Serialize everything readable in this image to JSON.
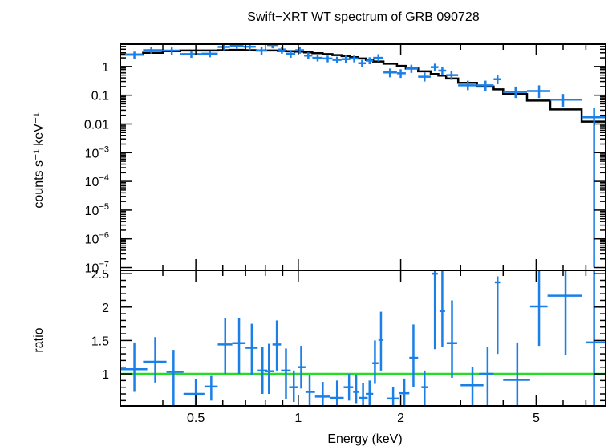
{
  "chart_data": [
    {
      "type": "scatter",
      "panel": "spectrum",
      "title": "Swift−XRT WT spectrum of GRB 090728",
      "ylabel": "counts s⁻¹ keV⁻¹",
      "yscale": "log",
      "xscale": "log",
      "xlim": [
        0.3,
        8.0
      ],
      "ylim": [
        8e-08,
        6
      ],
      "yticks": [
        {
          "value": 1,
          "label": "1"
        },
        {
          "value": 0.1,
          "label": "0.1"
        },
        {
          "value": 0.01,
          "label": "0.01"
        },
        {
          "value": 0.001,
          "label": "10",
          "exp": "−3"
        },
        {
          "value": 0.0001,
          "label": "10",
          "exp": "−4"
        },
        {
          "value": 1e-05,
          "label": "10",
          "exp": "−5"
        },
        {
          "value": 1e-06,
          "label": "10",
          "exp": "−6"
        },
        {
          "value": 1e-07,
          "label": "10",
          "exp": "−7"
        }
      ],
      "colors": {
        "data": "#1a7fe6",
        "model": "#000000"
      },
      "data": [
        {
          "x": 0.33,
          "xlo": 0.31,
          "xhi": 0.35,
          "y": 2.6,
          "ylo": 1.8,
          "yhi": 3.3
        },
        {
          "x": 0.37,
          "xlo": 0.35,
          "xhi": 0.4,
          "y": 3.7,
          "ylo": 2.8,
          "yhi": 4.7
        },
        {
          "x": 0.425,
          "xlo": 0.4,
          "xhi": 0.45,
          "y": 3.6,
          "ylo": 2.5,
          "yhi": 4.6
        },
        {
          "x": 0.485,
          "xlo": 0.45,
          "xhi": 0.52,
          "y": 2.7,
          "ylo": 2.0,
          "yhi": 3.6
        },
        {
          "x": 0.55,
          "xlo": 0.52,
          "xhi": 0.58,
          "y": 2.8,
          "ylo": 2.1,
          "yhi": 3.6
        },
        {
          "x": 0.605,
          "xlo": 0.58,
          "xhi": 0.63,
          "y": 4.8,
          "ylo": 3.7,
          "yhi": 5.9
        },
        {
          "x": 0.66,
          "xlo": 0.63,
          "xhi": 0.69,
          "y": 5.3,
          "ylo": 4.2,
          "yhi": 6.2
        },
        {
          "x": 0.72,
          "xlo": 0.69,
          "xhi": 0.75,
          "y": 4.9,
          "ylo": 3.7,
          "yhi": 6.0
        },
        {
          "x": 0.78,
          "xlo": 0.75,
          "xhi": 0.81,
          "y": 3.6,
          "ylo": 2.6,
          "yhi": 4.7
        },
        {
          "x": 0.84,
          "xlo": 0.81,
          "xhi": 0.87,
          "y": 5.6,
          "ylo": 4.3,
          "yhi": 6.3
        },
        {
          "x": 0.895,
          "xlo": 0.87,
          "xhi": 0.92,
          "y": 3.9,
          "ylo": 2.8,
          "yhi": 5.0
        },
        {
          "x": 0.95,
          "xlo": 0.92,
          "xhi": 0.98,
          "y": 2.8,
          "ylo": 2.0,
          "yhi": 3.8
        },
        {
          "x": 1.01,
          "xlo": 0.98,
          "xhi": 1.04,
          "y": 3.7,
          "ylo": 2.8,
          "yhi": 4.7
        },
        {
          "x": 1.07,
          "xlo": 1.04,
          "xhi": 1.1,
          "y": 2.4,
          "ylo": 1.8,
          "yhi": 3.1
        },
        {
          "x": 1.14,
          "xlo": 1.1,
          "xhi": 1.18,
          "y": 2.0,
          "ylo": 1.5,
          "yhi": 2.6
        },
        {
          "x": 1.22,
          "xlo": 1.18,
          "xhi": 1.26,
          "y": 1.9,
          "ylo": 1.4,
          "yhi": 2.4
        },
        {
          "x": 1.3,
          "xlo": 1.26,
          "xhi": 1.34,
          "y": 1.7,
          "ylo": 1.3,
          "yhi": 2.2
        },
        {
          "x": 1.38,
          "xlo": 1.34,
          "xhi": 1.42,
          "y": 1.8,
          "ylo": 1.3,
          "yhi": 2.4
        },
        {
          "x": 1.46,
          "xlo": 1.42,
          "xhi": 1.5,
          "y": 1.9,
          "ylo": 1.4,
          "yhi": 2.4
        },
        {
          "x": 1.54,
          "xlo": 1.5,
          "xhi": 1.58,
          "y": 1.3,
          "ylo": 0.95,
          "yhi": 1.7
        },
        {
          "x": 1.62,
          "xlo": 1.58,
          "xhi": 1.66,
          "y": 1.6,
          "ylo": 1.2,
          "yhi": 2.1
        },
        {
          "x": 1.72,
          "xlo": 1.66,
          "xhi": 1.78,
          "y": 2.0,
          "ylo": 1.5,
          "yhi": 2.7
        },
        {
          "x": 1.86,
          "xlo": 1.78,
          "xhi": 1.95,
          "y": 0.62,
          "ylo": 0.42,
          "yhi": 0.85
        },
        {
          "x": 2.0,
          "xlo": 1.95,
          "xhi": 2.07,
          "y": 0.58,
          "ylo": 0.4,
          "yhi": 0.8
        },
        {
          "x": 2.15,
          "xlo": 2.07,
          "xhi": 2.25,
          "y": 0.85,
          "ylo": 0.6,
          "yhi": 1.15
        },
        {
          "x": 2.35,
          "xlo": 2.25,
          "xhi": 2.45,
          "y": 0.44,
          "ylo": 0.3,
          "yhi": 0.62
        },
        {
          "x": 2.52,
          "xlo": 2.45,
          "xhi": 2.58,
          "y": 0.95,
          "ylo": 0.7,
          "yhi": 1.25
        },
        {
          "x": 2.65,
          "xlo": 2.58,
          "xhi": 2.72,
          "y": 0.72,
          "ylo": 0.5,
          "yhi": 0.98
        },
        {
          "x": 2.82,
          "xlo": 2.72,
          "xhi": 2.95,
          "y": 0.5,
          "ylo": 0.34,
          "yhi": 0.7
        },
        {
          "x": 3.15,
          "xlo": 2.95,
          "xhi": 3.35,
          "y": 0.22,
          "ylo": 0.15,
          "yhi": 0.32
        },
        {
          "x": 3.55,
          "xlo": 3.35,
          "xhi": 3.75,
          "y": 0.22,
          "ylo": 0.14,
          "yhi": 0.32
        },
        {
          "x": 3.85,
          "xlo": 3.75,
          "xhi": 3.95,
          "y": 0.36,
          "ylo": 0.24,
          "yhi": 0.52
        },
        {
          "x": 4.35,
          "xlo": 4.0,
          "xhi": 4.7,
          "y": 0.13,
          "ylo": 0.08,
          "yhi": 0.2
        },
        {
          "x": 5.1,
          "xlo": 4.7,
          "xhi": 5.5,
          "y": 0.14,
          "ylo": 0.08,
          "yhi": 0.22
        },
        {
          "x": 6.0,
          "xlo": 5.5,
          "xhi": 6.8,
          "y": 0.07,
          "ylo": 0.04,
          "yhi": 0.11
        },
        {
          "x": 7.4,
          "xlo": 6.8,
          "xhi": 8.0,
          "y": 0.017,
          "ylo": 1e-07,
          "yhi": 0.035
        }
      ],
      "model": [
        {
          "xlo": 0.3,
          "xhi": 0.35,
          "y": 2.6
        },
        {
          "xlo": 0.35,
          "xhi": 0.4,
          "y": 3.0
        },
        {
          "xlo": 0.4,
          "xhi": 0.45,
          "y": 3.4
        },
        {
          "xlo": 0.45,
          "xhi": 0.52,
          "y": 3.6
        },
        {
          "xlo": 0.52,
          "xhi": 0.58,
          "y": 3.6
        },
        {
          "xlo": 0.58,
          "xhi": 0.63,
          "y": 3.7
        },
        {
          "xlo": 0.63,
          "xhi": 0.69,
          "y": 3.8
        },
        {
          "xlo": 0.69,
          "xhi": 0.75,
          "y": 3.7
        },
        {
          "xlo": 0.75,
          "xhi": 0.81,
          "y": 3.6
        },
        {
          "xlo": 0.81,
          "xhi": 0.87,
          "y": 3.6
        },
        {
          "xlo": 0.87,
          "xhi": 0.92,
          "y": 3.5
        },
        {
          "xlo": 0.92,
          "xhi": 0.98,
          "y": 3.4
        },
        {
          "xlo": 0.98,
          "xhi": 1.04,
          "y": 3.3
        },
        {
          "xlo": 1.04,
          "xhi": 1.1,
          "y": 3.1
        },
        {
          "xlo": 1.1,
          "xhi": 1.18,
          "y": 2.9
        },
        {
          "xlo": 1.18,
          "xhi": 1.26,
          "y": 2.7
        },
        {
          "xlo": 1.26,
          "xhi": 1.34,
          "y": 2.5
        },
        {
          "xlo": 1.34,
          "xhi": 1.42,
          "y": 2.3
        },
        {
          "xlo": 1.42,
          "xhi": 1.5,
          "y": 2.1
        },
        {
          "xlo": 1.5,
          "xhi": 1.58,
          "y": 1.9
        },
        {
          "xlo": 1.58,
          "xhi": 1.66,
          "y": 1.7
        },
        {
          "xlo": 1.66,
          "xhi": 1.78,
          "y": 1.5
        },
        {
          "xlo": 1.78,
          "xhi": 1.95,
          "y": 1.25
        },
        {
          "xlo": 1.95,
          "xhi": 2.07,
          "y": 1.05
        },
        {
          "xlo": 2.07,
          "xhi": 2.25,
          "y": 0.85
        },
        {
          "xlo": 2.25,
          "xhi": 2.45,
          "y": 0.68
        },
        {
          "xlo": 2.45,
          "xhi": 2.58,
          "y": 0.55
        },
        {
          "xlo": 2.58,
          "xhi": 2.72,
          "y": 0.48
        },
        {
          "xlo": 2.72,
          "xhi": 2.95,
          "y": 0.38
        },
        {
          "xlo": 2.95,
          "xhi": 3.35,
          "y": 0.27
        },
        {
          "xlo": 3.35,
          "xhi": 3.75,
          "y": 0.2
        },
        {
          "xlo": 3.75,
          "xhi": 4.0,
          "y": 0.16
        },
        {
          "xlo": 4.0,
          "xhi": 4.7,
          "y": 0.11
        },
        {
          "xlo": 4.7,
          "xhi": 5.5,
          "y": 0.065
        },
        {
          "xlo": 5.5,
          "xhi": 6.8,
          "y": 0.032
        },
        {
          "xlo": 6.8,
          "xhi": 8.0,
          "y": 0.012
        }
      ]
    },
    {
      "type": "scatter",
      "panel": "ratio",
      "xlabel": "Energy (keV)",
      "ylabel": "ratio",
      "xscale": "log",
      "xlim": [
        0.3,
        8.0
      ],
      "ylim": [
        0.52,
        2.55
      ],
      "xticks": [
        {
          "value": 0.5,
          "label": "0.5"
        },
        {
          "value": 1,
          "label": "1"
        },
        {
          "value": 2,
          "label": "2"
        },
        {
          "value": 5,
          "label": "5"
        }
      ],
      "yticks": [
        {
          "value": 1,
          "label": "1"
        },
        {
          "value": 1.5,
          "label": "1.5"
        },
        {
          "value": 2,
          "label": "2"
        },
        {
          "value": 2.5,
          "label": "2.5"
        }
      ],
      "reference_line": {
        "y": 1,
        "color": "#22dd22"
      },
      "colors": {
        "data": "#1a7fe6"
      },
      "data": [
        {
          "x": 0.33,
          "xlo": 0.3,
          "xhi": 0.36,
          "y": 1.07,
          "ylo": 0.73,
          "yhi": 1.47
        },
        {
          "x": 0.38,
          "xlo": 0.35,
          "xhi": 0.41,
          "y": 1.18,
          "ylo": 0.87,
          "yhi": 1.55
        },
        {
          "x": 0.43,
          "xlo": 0.41,
          "xhi": 0.46,
          "y": 1.03,
          "ylo": 0.52,
          "yhi": 1.36
        },
        {
          "x": 0.5,
          "xlo": 0.46,
          "xhi": 0.53,
          "y": 0.7,
          "ylo": 0.52,
          "yhi": 0.92
        },
        {
          "x": 0.555,
          "xlo": 0.53,
          "xhi": 0.58,
          "y": 0.81,
          "ylo": 0.6,
          "yhi": 0.97
        },
        {
          "x": 0.61,
          "xlo": 0.58,
          "xhi": 0.64,
          "y": 1.44,
          "ylo": 1.0,
          "yhi": 1.84
        },
        {
          "x": 0.67,
          "xlo": 0.64,
          "xhi": 0.7,
          "y": 1.46,
          "ylo": 1.0,
          "yhi": 1.83
        },
        {
          "x": 0.73,
          "xlo": 0.7,
          "xhi": 0.76,
          "y": 1.39,
          "ylo": 0.98,
          "yhi": 1.75
        },
        {
          "x": 0.785,
          "xlo": 0.76,
          "xhi": 0.81,
          "y": 1.05,
          "ylo": 0.7,
          "yhi": 1.4
        },
        {
          "x": 0.82,
          "xlo": 0.8,
          "xhi": 0.85,
          "y": 1.04,
          "ylo": 0.7,
          "yhi": 1.45
        },
        {
          "x": 0.865,
          "xlo": 0.84,
          "xhi": 0.89,
          "y": 1.44,
          "ylo": 1.05,
          "yhi": 1.8
        },
        {
          "x": 0.92,
          "xlo": 0.89,
          "xhi": 0.95,
          "y": 1.05,
          "ylo": 0.62,
          "yhi": 1.38
        },
        {
          "x": 0.97,
          "xlo": 0.94,
          "xhi": 1.0,
          "y": 0.8,
          "ylo": 0.58,
          "yhi": 1.05
        },
        {
          "x": 1.02,
          "xlo": 1.0,
          "xhi": 1.05,
          "y": 1.1,
          "ylo": 0.78,
          "yhi": 1.42
        },
        {
          "x": 1.08,
          "xlo": 1.05,
          "xhi": 1.12,
          "y": 0.73,
          "ylo": 0.52,
          "yhi": 0.98
        },
        {
          "x": 1.18,
          "xlo": 1.12,
          "xhi": 1.24,
          "y": 0.66,
          "ylo": 0.52,
          "yhi": 0.88
        },
        {
          "x": 1.3,
          "xlo": 1.24,
          "xhi": 1.36,
          "y": 0.64,
          "ylo": 0.52,
          "yhi": 0.9
        },
        {
          "x": 1.41,
          "xlo": 1.36,
          "xhi": 1.45,
          "y": 0.8,
          "ylo": 0.6,
          "yhi": 1.0
        },
        {
          "x": 1.48,
          "xlo": 1.45,
          "xhi": 1.51,
          "y": 0.73,
          "ylo": 0.55,
          "yhi": 0.98
        },
        {
          "x": 1.55,
          "xlo": 1.51,
          "xhi": 1.6,
          "y": 0.64,
          "ylo": 0.52,
          "yhi": 0.86
        },
        {
          "x": 1.62,
          "xlo": 1.58,
          "xhi": 1.66,
          "y": 0.7,
          "ylo": 0.52,
          "yhi": 0.9
        },
        {
          "x": 1.68,
          "xlo": 1.65,
          "xhi": 1.72,
          "y": 1.16,
          "ylo": 0.85,
          "yhi": 1.5
        },
        {
          "x": 1.75,
          "xlo": 1.72,
          "xhi": 1.78,
          "y": 1.51,
          "ylo": 1.05,
          "yhi": 1.93
        },
        {
          "x": 1.9,
          "xlo": 1.82,
          "xhi": 1.98,
          "y": 0.63,
          "ylo": 0.52,
          "yhi": 0.8
        },
        {
          "x": 2.05,
          "xlo": 1.98,
          "xhi": 2.12,
          "y": 0.71,
          "ylo": 0.52,
          "yhi": 0.93
        },
        {
          "x": 2.18,
          "xlo": 2.12,
          "xhi": 2.25,
          "y": 1.24,
          "ylo": 0.8,
          "yhi": 1.74
        },
        {
          "x": 2.35,
          "xlo": 2.3,
          "xhi": 2.4,
          "y": 0.8,
          "ylo": 0.52,
          "yhi": 1.05
        },
        {
          "x": 2.52,
          "xlo": 2.47,
          "xhi": 2.57,
          "y": 2.5,
          "ylo": 1.37,
          "yhi": 2.55
        },
        {
          "x": 2.65,
          "xlo": 2.6,
          "xhi": 2.7,
          "y": 1.94,
          "ylo": 1.4,
          "yhi": 2.55
        },
        {
          "x": 2.83,
          "xlo": 2.73,
          "xhi": 2.93,
          "y": 1.46,
          "ylo": 0.94,
          "yhi": 2.1
        },
        {
          "x": 3.25,
          "xlo": 3.0,
          "xhi": 3.5,
          "y": 0.83,
          "ylo": 0.52,
          "yhi": 1.1
        },
        {
          "x": 3.6,
          "xlo": 3.4,
          "xhi": 3.75,
          "y": 1.0,
          "ylo": 0.52,
          "yhi": 1.4
        },
        {
          "x": 3.85,
          "xlo": 3.78,
          "xhi": 3.92,
          "y": 2.37,
          "ylo": 1.3,
          "yhi": 2.46
        },
        {
          "x": 4.4,
          "xlo": 4.0,
          "xhi": 4.8,
          "y": 0.91,
          "ylo": 0.52,
          "yhi": 1.47
        },
        {
          "x": 5.1,
          "xlo": 4.8,
          "xhi": 5.4,
          "y": 2.01,
          "ylo": 1.42,
          "yhi": 2.55
        },
        {
          "x": 6.1,
          "xlo": 5.4,
          "xhi": 6.8,
          "y": 2.17,
          "ylo": 1.28,
          "yhi": 2.55
        },
        {
          "x": 7.4,
          "xlo": 7.0,
          "xhi": 8.0,
          "y": 1.47,
          "ylo": 0.52,
          "yhi": 2.55
        }
      ]
    }
  ]
}
